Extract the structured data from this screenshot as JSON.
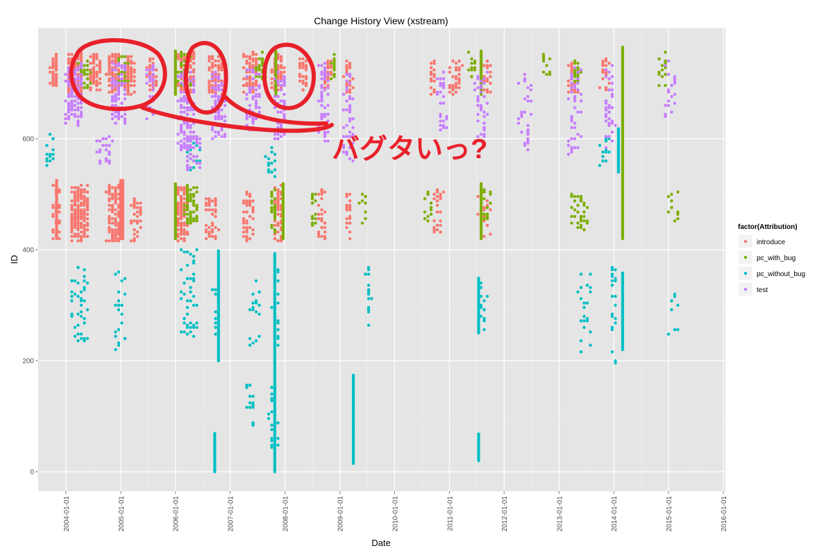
{
  "chart_data": {
    "type": "scatter",
    "title": "Change History View (xstream)",
    "xlabel": "Date",
    "ylabel": "ID",
    "x_type": "date",
    "xlim": [
      "2003-07-01",
      "2016-01-15"
    ],
    "ylim": [
      -35,
      800
    ],
    "x_ticks": [
      "2004-01-01",
      "2005-01-01",
      "2006-01-01",
      "2007-01-01",
      "2008-01-01",
      "2009-01-01",
      "2010-01-01",
      "2011-01-01",
      "2012-01-01",
      "2013-01-01",
      "2014-01-01",
      "2015-01-01",
      "2016-01-01"
    ],
    "y_ticks": [
      0,
      200,
      400,
      600
    ],
    "grid": true,
    "legend": {
      "title": "factor(Attribution)",
      "position": "right"
    },
    "series": [
      {
        "name": "introduce",
        "color": "#F8766D",
        "point_clusters": [
          {
            "x": "2003-10-15",
            "y": 725,
            "xspan_days": 40,
            "yspan": 60,
            "n": 60
          },
          {
            "x": "2004-03-01",
            "y": 720,
            "xspan_days": 100,
            "yspan": 70,
            "n": 140
          },
          {
            "x": "2004-07-15",
            "y": 720,
            "xspan_days": 60,
            "yspan": 70,
            "n": 80
          },
          {
            "x": "2004-11-15",
            "y": 720,
            "xspan_days": 80,
            "yspan": 70,
            "n": 100
          },
          {
            "x": "2005-03-01",
            "y": 715,
            "xspan_days": 70,
            "yspan": 70,
            "n": 70
          },
          {
            "x": "2005-08-01",
            "y": 715,
            "xspan_days": 60,
            "yspan": 60,
            "n": 40
          },
          {
            "x": "2006-03-15",
            "y": 720,
            "xspan_days": 100,
            "yspan": 70,
            "n": 120
          },
          {
            "x": "2006-10-01",
            "y": 715,
            "xspan_days": 90,
            "yspan": 70,
            "n": 80
          },
          {
            "x": "2007-05-15",
            "y": 720,
            "xspan_days": 90,
            "yspan": 70,
            "n": 90
          },
          {
            "x": "2007-11-15",
            "y": 720,
            "xspan_days": 70,
            "yspan": 70,
            "n": 70
          },
          {
            "x": "2008-05-01",
            "y": 715,
            "xspan_days": 60,
            "yspan": 60,
            "n": 40
          },
          {
            "x": "2008-10-15",
            "y": 710,
            "xspan_days": 40,
            "yspan": 60,
            "n": 30
          },
          {
            "x": "2009-03-01",
            "y": 710,
            "xspan_days": 50,
            "yspan": 60,
            "n": 30
          },
          {
            "x": "2010-09-15",
            "y": 710,
            "xspan_days": 30,
            "yspan": 60,
            "n": 20
          },
          {
            "x": "2011-02-15",
            "y": 710,
            "xspan_days": 80,
            "yspan": 60,
            "n": 35
          },
          {
            "x": "2011-09-01",
            "y": 710,
            "xspan_days": 80,
            "yspan": 60,
            "n": 35
          },
          {
            "x": "2013-04-01",
            "y": 710,
            "xspan_days": 70,
            "yspan": 60,
            "n": 25
          },
          {
            "x": "2013-11-01",
            "y": 715,
            "xspan_days": 60,
            "yspan": 60,
            "n": 25
          },
          {
            "x": "2003-11-01",
            "y": 470,
            "xspan_days": 50,
            "yspan": 100,
            "n": 40
          },
          {
            "x": "2004-04-01",
            "y": 465,
            "xspan_days": 110,
            "yspan": 100,
            "n": 170
          },
          {
            "x": "2004-11-15",
            "y": 465,
            "xspan_days": 90,
            "yspan": 100,
            "n": 120
          },
          {
            "x": "2005-04-15",
            "y": 455,
            "xspan_days": 60,
            "yspan": 80,
            "n": 35
          },
          {
            "x": "2006-02-15",
            "y": 465,
            "xspan_days": 70,
            "yspan": 100,
            "n": 110
          },
          {
            "x": "2006-09-01",
            "y": 455,
            "xspan_days": 80,
            "yspan": 80,
            "n": 40
          },
          {
            "x": "2007-05-01",
            "y": 460,
            "xspan_days": 80,
            "yspan": 90,
            "n": 45
          },
          {
            "x": "2007-11-15",
            "y": 465,
            "xspan_days": 50,
            "yspan": 100,
            "n": 60
          },
          {
            "x": "2008-09-01",
            "y": 465,
            "xspan_days": 60,
            "yspan": 90,
            "n": 30
          },
          {
            "x": "2009-03-01",
            "y": 465,
            "xspan_days": 40,
            "yspan": 90,
            "n": 20
          },
          {
            "x": "2010-10-15",
            "y": 470,
            "xspan_days": 60,
            "yspan": 80,
            "n": 25
          },
          {
            "x": "2011-08-15",
            "y": 465,
            "xspan_days": 80,
            "yspan": 80,
            "n": 25
          }
        ],
        "vertical_streaks": [
          {
            "x": "2003-11-01",
            "y0": 420,
            "y1": 525
          },
          {
            "x": "2005-01-01",
            "y0": 420,
            "y1": 525
          },
          {
            "x": "2005-01-15",
            "y0": 420,
            "y1": 525
          }
        ]
      },
      {
        "name": "pc_with_bug",
        "color": "#7CAE00",
        "point_clusters": [
          {
            "x": "2004-05-01",
            "y": 715,
            "xspan_days": 80,
            "yspan": 50,
            "n": 35
          },
          {
            "x": "2005-01-15",
            "y": 725,
            "xspan_days": 60,
            "yspan": 50,
            "n": 25
          },
          {
            "x": "2006-03-01",
            "y": 725,
            "xspan_days": 80,
            "yspan": 60,
            "n": 40
          },
          {
            "x": "2007-08-01",
            "y": 730,
            "xspan_days": 60,
            "yspan": 50,
            "n": 25
          },
          {
            "x": "2008-11-15",
            "y": 730,
            "xspan_days": 40,
            "yspan": 50,
            "n": 12
          },
          {
            "x": "2011-06-01",
            "y": 730,
            "xspan_days": 50,
            "yspan": 50,
            "n": 12
          },
          {
            "x": "2012-10-15",
            "y": 735,
            "xspan_days": 60,
            "yspan": 40,
            "n": 12
          },
          {
            "x": "2013-05-01",
            "y": 725,
            "xspan_days": 60,
            "yspan": 50,
            "n": 20
          },
          {
            "x": "2014-11-15",
            "y": 725,
            "xspan_days": 60,
            "yspan": 60,
            "n": 15
          },
          {
            "x": "2006-04-15",
            "y": 480,
            "xspan_days": 80,
            "yspan": 70,
            "n": 60
          },
          {
            "x": "2007-10-15",
            "y": 470,
            "xspan_days": 40,
            "yspan": 80,
            "n": 25
          },
          {
            "x": "2008-07-15",
            "y": 480,
            "xspan_days": 40,
            "yspan": 70,
            "n": 15
          },
          {
            "x": "2009-06-01",
            "y": 475,
            "xspan_days": 30,
            "yspan": 60,
            "n": 10
          },
          {
            "x": "2010-08-15",
            "y": 475,
            "xspan_days": 40,
            "yspan": 60,
            "n": 12
          },
          {
            "x": "2011-09-01",
            "y": 480,
            "xspan_days": 60,
            "yspan": 60,
            "n": 20
          },
          {
            "x": "2013-05-15",
            "y": 470,
            "xspan_days": 100,
            "yspan": 70,
            "n": 35
          },
          {
            "x": "2015-02-01",
            "y": 475,
            "xspan_days": 80,
            "yspan": 60,
            "n": 10
          }
        ],
        "vertical_streaks": [
          {
            "x": "2006-01-01",
            "y0": 680,
            "y1": 760
          },
          {
            "x": "2006-01-01",
            "y0": 420,
            "y1": 520
          },
          {
            "x": "2007-11-01",
            "y0": 680,
            "y1": 760
          },
          {
            "x": "2007-12-20",
            "y0": 420,
            "y1": 520
          },
          {
            "x": "2011-08-01",
            "y0": 680,
            "y1": 760
          },
          {
            "x": "2011-08-01",
            "y0": 420,
            "y1": 520
          },
          {
            "x": "2014-03-01",
            "y0": 420,
            "y1": 765
          }
        ]
      },
      {
        "name": "pc_without_bug",
        "color": "#00BFC4",
        "point_clusters": [
          {
            "x": "2004-04-01",
            "y": 300,
            "xspan_days": 110,
            "yspan": 140,
            "n": 40
          },
          {
            "x": "2005-01-01",
            "y": 290,
            "xspan_days": 60,
            "yspan": 150,
            "n": 25
          },
          {
            "x": "2006-04-01",
            "y": 320,
            "xspan_days": 110,
            "yspan": 160,
            "n": 45
          },
          {
            "x": "2006-10-01",
            "y": 290,
            "xspan_days": 40,
            "yspan": 120,
            "n": 15
          },
          {
            "x": "2007-06-15",
            "y": 280,
            "xspan_days": 80,
            "yspan": 130,
            "n": 18
          },
          {
            "x": "2007-11-01",
            "y": 300,
            "xspan_days": 40,
            "yspan": 150,
            "n": 30
          },
          {
            "x": "2009-07-15",
            "y": 310,
            "xspan_days": 40,
            "yspan": 120,
            "n": 15
          },
          {
            "x": "2011-08-15",
            "y": 300,
            "xspan_days": 50,
            "yspan": 90,
            "n": 15
          },
          {
            "x": "2013-06-15",
            "y": 290,
            "xspan_days": 100,
            "yspan": 150,
            "n": 25
          },
          {
            "x": "2014-01-01",
            "y": 280,
            "xspan_days": 40,
            "yspan": 180,
            "n": 25
          },
          {
            "x": "2015-02-01",
            "y": 290,
            "xspan_days": 60,
            "yspan": 90,
            "n": 8
          },
          {
            "x": "2003-09-15",
            "y": 580,
            "xspan_days": 60,
            "yspan": 60,
            "n": 15
          },
          {
            "x": "2006-05-01",
            "y": 570,
            "xspan_days": 100,
            "yspan": 60,
            "n": 20
          },
          {
            "x": "2007-10-01",
            "y": 560,
            "xspan_days": 60,
            "yspan": 60,
            "n": 15
          },
          {
            "x": "2013-11-01",
            "y": 580,
            "xspan_days": 60,
            "yspan": 60,
            "n": 12
          },
          {
            "x": "2007-05-15",
            "y": 120,
            "xspan_days": 60,
            "yspan": 80,
            "n": 20
          },
          {
            "x": "2007-10-15",
            "y": 100,
            "xspan_days": 60,
            "yspan": 120,
            "n": 25
          }
        ],
        "vertical_streaks": [
          {
            "x": "2006-09-20",
            "y0": 0,
            "y1": 70
          },
          {
            "x": "2006-10-15",
            "y0": 200,
            "y1": 400
          },
          {
            "x": "2007-10-25",
            "y0": 0,
            "y1": 395
          },
          {
            "x": "2009-04-01",
            "y0": 15,
            "y1": 175
          },
          {
            "x": "2011-07-15",
            "y0": 20,
            "y1": 70
          },
          {
            "x": "2011-07-15",
            "y0": 250,
            "y1": 350
          },
          {
            "x": "2014-03-01",
            "y0": 220,
            "y1": 360
          },
          {
            "x": "2014-02-01",
            "y0": 540,
            "y1": 620
          }
        ]
      },
      {
        "name": "test",
        "color": "#C77CFF",
        "point_clusters": [
          {
            "x": "2004-03-01",
            "y": 680,
            "xspan_days": 110,
            "yspan": 110,
            "n": 110
          },
          {
            "x": "2004-12-15",
            "y": 680,
            "xspan_days": 90,
            "yspan": 110,
            "n": 90
          },
          {
            "x": "2005-07-15",
            "y": 685,
            "xspan_days": 60,
            "yspan": 100,
            "n": 35
          },
          {
            "x": "2006-03-15",
            "y": 650,
            "xspan_days": 100,
            "yspan": 140,
            "n": 120
          },
          {
            "x": "2006-10-15",
            "y": 660,
            "xspan_days": 90,
            "yspan": 120,
            "n": 70
          },
          {
            "x": "2007-06-01",
            "y": 670,
            "xspan_days": 90,
            "yspan": 110,
            "n": 60
          },
          {
            "x": "2007-12-01",
            "y": 660,
            "xspan_days": 70,
            "yspan": 120,
            "n": 60
          },
          {
            "x": "2008-09-15",
            "y": 660,
            "xspan_days": 60,
            "yspan": 150,
            "n": 55
          },
          {
            "x": "2009-03-01",
            "y": 640,
            "xspan_days": 70,
            "yspan": 160,
            "n": 45
          },
          {
            "x": "2010-11-15",
            "y": 665,
            "xspan_days": 60,
            "yspan": 120,
            "n": 30
          },
          {
            "x": "2011-08-01",
            "y": 660,
            "xspan_days": 70,
            "yspan": 120,
            "n": 40
          },
          {
            "x": "2012-05-15",
            "y": 650,
            "xspan_days": 100,
            "yspan": 140,
            "n": 30
          },
          {
            "x": "2013-04-15",
            "y": 650,
            "xspan_days": 80,
            "yspan": 160,
            "n": 45
          },
          {
            "x": "2013-12-01",
            "y": 660,
            "xspan_days": 70,
            "yspan": 150,
            "n": 40
          },
          {
            "x": "2015-01-15",
            "y": 690,
            "xspan_days": 70,
            "yspan": 100,
            "n": 20
          },
          {
            "x": "2004-09-15",
            "y": 580,
            "xspan_days": 90,
            "yspan": 50,
            "n": 30
          },
          {
            "x": "2006-05-01",
            "y": 575,
            "xspan_days": 100,
            "yspan": 60,
            "n": 35
          }
        ],
        "vertical_streaks": []
      }
    ]
  },
  "annotation": {
    "text": "バグタいっ?",
    "color": "#e8202a"
  }
}
